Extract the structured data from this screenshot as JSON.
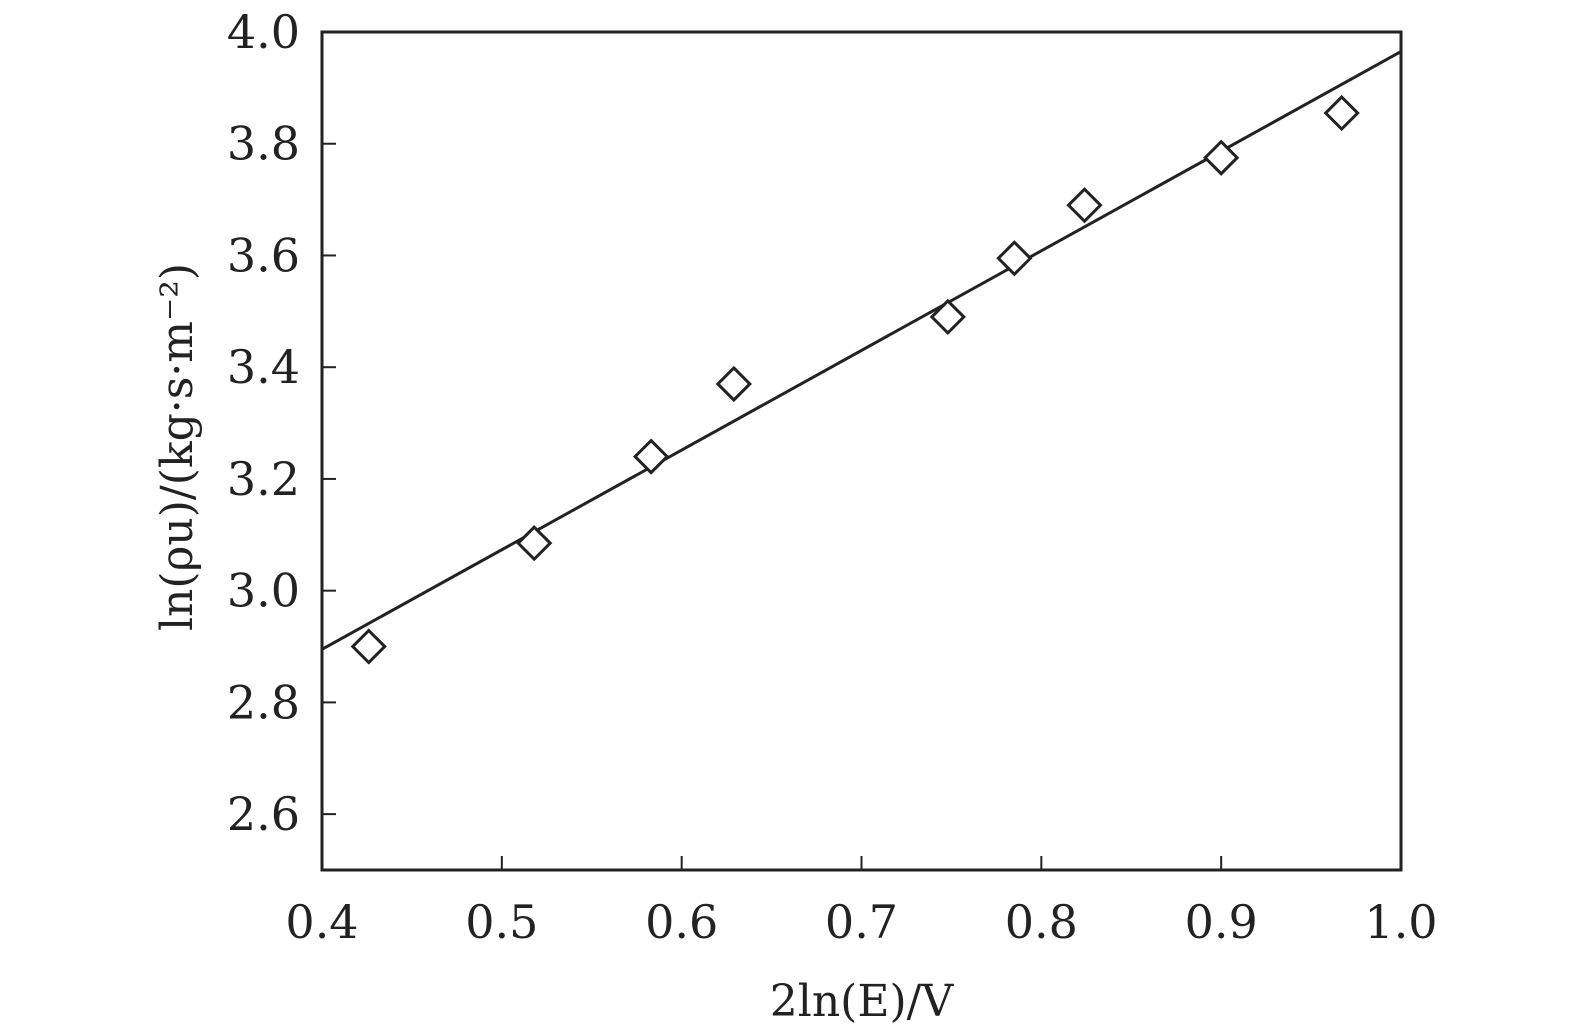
{
  "chart_data": {
    "type": "scatter",
    "xlabel": "2ln(E)/V",
    "ylabel": "ln(ρu)/(kg·s·m⁻²)",
    "xlim": [
      0.4,
      1.0
    ],
    "ylim": [
      2.5,
      4.0
    ],
    "xticks": [
      "0.4",
      "0.5",
      "0.6",
      "0.7",
      "0.8",
      "0.9",
      "1.0"
    ],
    "yticks": [
      "2.6",
      "2.8",
      "3.0",
      "3.2",
      "3.4",
      "3.6",
      "3.8",
      "4.0"
    ],
    "grid": false,
    "legend": "none",
    "colors": {
      "ink": "#222222"
    },
    "series": [
      {
        "marker": "diamond-open",
        "x": [
          0.426,
          0.518,
          0.583,
          0.629,
          0.748,
          0.785,
          0.824,
          0.9,
          0.967
        ],
        "y": [
          2.9,
          3.085,
          3.24,
          3.37,
          3.49,
          3.595,
          3.69,
          3.775,
          3.855
        ]
      }
    ],
    "fit_line": {
      "x": [
        0.4,
        1.0
      ],
      "y": [
        2.895,
        3.965
      ]
    }
  }
}
